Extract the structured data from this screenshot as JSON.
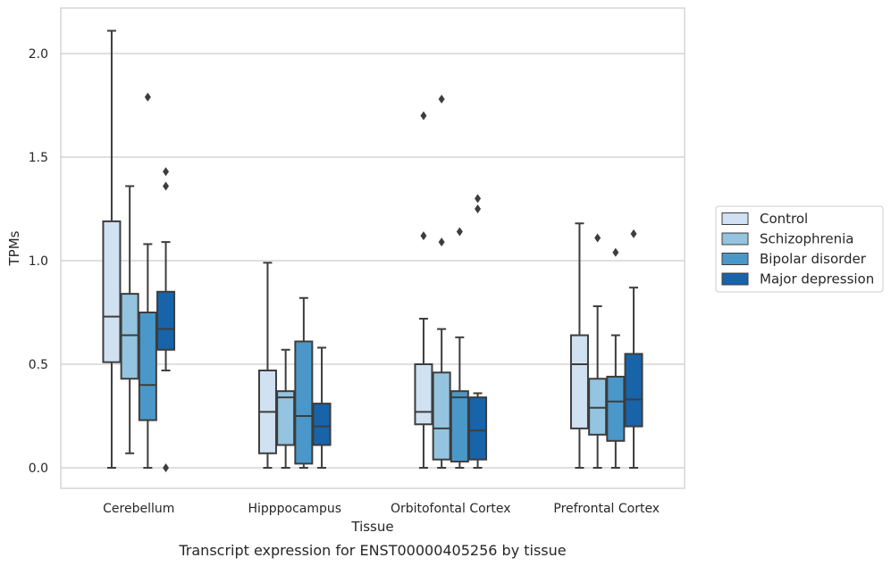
{
  "caption": "Transcript expression for ENST00000405256 by tissue",
  "chart_data": {
    "type": "box",
    "xlabel": "Tissue",
    "ylabel": "TPMs",
    "ylim": [
      -0.1,
      2.24
    ],
    "yticks": [
      0.0,
      0.5,
      1.0,
      1.5,
      2.0
    ],
    "ytick_labels": [
      "0.0",
      "0.5",
      "1.0",
      "1.5",
      "2.0"
    ],
    "grid": "horizontal",
    "legend_position": "right",
    "categories": [
      "Cerebellum",
      "Hipppocampus",
      "Orbitofontal Cortex",
      "Prefrontal Cortex"
    ],
    "series": [
      {
        "name": "Control",
        "color": "#d0e1f2",
        "boxes": [
          {
            "whislo": 0.0,
            "q1": 0.51,
            "med": 0.73,
            "q3": 1.19,
            "whishi": 2.11,
            "fliers": []
          },
          {
            "whislo": 0.0,
            "q1": 0.07,
            "med": 0.27,
            "q3": 0.47,
            "whishi": 0.99,
            "fliers": []
          },
          {
            "whislo": 0.0,
            "q1": 0.21,
            "med": 0.27,
            "q3": 0.5,
            "whishi": 0.72,
            "fliers": [
              1.12,
              1.7
            ]
          },
          {
            "whislo": 0.0,
            "q1": 0.19,
            "med": 0.5,
            "q3": 0.64,
            "whishi": 1.18,
            "fliers": []
          }
        ]
      },
      {
        "name": "Schizophrenia",
        "color": "#94c4df",
        "boxes": [
          {
            "whislo": 0.07,
            "q1": 0.43,
            "med": 0.64,
            "q3": 0.84,
            "whishi": 1.36,
            "fliers": []
          },
          {
            "whislo": 0.0,
            "q1": 0.11,
            "med": 0.34,
            "q3": 0.37,
            "whishi": 0.57,
            "fliers": []
          },
          {
            "whislo": 0.0,
            "q1": 0.04,
            "med": 0.19,
            "q3": 0.46,
            "whishi": 0.67,
            "fliers": [
              1.09,
              1.78
            ]
          },
          {
            "whislo": 0.0,
            "q1": 0.16,
            "med": 0.29,
            "q3": 0.43,
            "whishi": 0.78,
            "fliers": [
              1.11
            ]
          }
        ]
      },
      {
        "name": "Bipolar disorder",
        "color": "#4a98c9",
        "boxes": [
          {
            "whislo": 0.0,
            "q1": 0.23,
            "med": 0.4,
            "q3": 0.75,
            "whishi": 1.08,
            "fliers": [
              1.79
            ]
          },
          {
            "whislo": 0.0,
            "q1": 0.02,
            "med": 0.25,
            "q3": 0.61,
            "whishi": 0.82,
            "fliers": []
          },
          {
            "whislo": 0.0,
            "q1": 0.03,
            "med": 0.34,
            "q3": 0.37,
            "whishi": 0.63,
            "fliers": [
              1.14
            ]
          },
          {
            "whislo": 0.0,
            "q1": 0.13,
            "med": 0.32,
            "q3": 0.44,
            "whishi": 0.64,
            "fliers": [
              1.04
            ]
          }
        ]
      },
      {
        "name": "Major depression",
        "color": "#1764ab",
        "boxes": [
          {
            "whislo": 0.47,
            "q1": 0.57,
            "med": 0.67,
            "q3": 0.85,
            "whishi": 1.09,
            "fliers": [
              0.0,
              1.36,
              1.43
            ]
          },
          {
            "whislo": 0.0,
            "q1": 0.11,
            "med": 0.2,
            "q3": 0.31,
            "whishi": 0.58,
            "fliers": []
          },
          {
            "whislo": 0.0,
            "q1": 0.04,
            "med": 0.18,
            "q3": 0.34,
            "whishi": 0.36,
            "fliers": [
              1.25,
              1.3
            ]
          },
          {
            "whislo": 0.0,
            "q1": 0.2,
            "med": 0.33,
            "q3": 0.55,
            "whishi": 0.87,
            "fliers": [
              1.13
            ]
          }
        ]
      }
    ]
  }
}
